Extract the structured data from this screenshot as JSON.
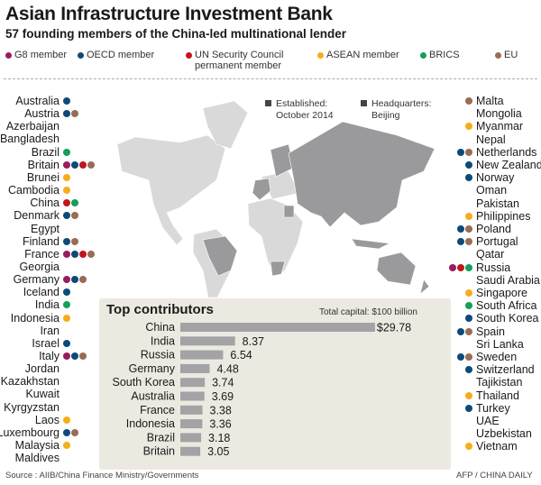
{
  "header": {
    "title": "Asian Infrastructure Investment Bank",
    "subtitle": "57 founding members of the China-led multinational lender"
  },
  "legend": [
    {
      "key": "g8",
      "label": "G8 member",
      "color": "#9b1c5e"
    },
    {
      "key": "oecd",
      "label": "OECD member",
      "color": "#0c4a7a"
    },
    {
      "key": "unsc",
      "label": "UN Security Council permanent member",
      "color": "#c0161b"
    },
    {
      "key": "asean",
      "label": "ASEAN member",
      "color": "#f5ad1a"
    },
    {
      "key": "brics",
      "label": "BRICS",
      "color": "#13a05a"
    },
    {
      "key": "eu",
      "label": "EU",
      "color": "#9a6b55"
    }
  ],
  "members_left": [
    {
      "name": "Australia",
      "tags": [
        "oecd"
      ]
    },
    {
      "name": "Austria",
      "tags": [
        "oecd",
        "eu"
      ]
    },
    {
      "name": "Azerbaijan",
      "tags": []
    },
    {
      "name": "Bangladesh",
      "tags": []
    },
    {
      "name": "Brazil",
      "tags": [
        "brics"
      ]
    },
    {
      "name": "Britain",
      "tags": [
        "g8",
        "oecd",
        "unsc",
        "eu"
      ]
    },
    {
      "name": "Brunei",
      "tags": [
        "asean"
      ]
    },
    {
      "name": "Cambodia",
      "tags": [
        "asean"
      ]
    },
    {
      "name": "China",
      "tags": [
        "unsc",
        "brics"
      ]
    },
    {
      "name": "Denmark",
      "tags": [
        "oecd",
        "eu"
      ]
    },
    {
      "name": "Egypt",
      "tags": []
    },
    {
      "name": "Finland",
      "tags": [
        "oecd",
        "eu"
      ]
    },
    {
      "name": "France",
      "tags": [
        "g8",
        "oecd",
        "unsc",
        "eu"
      ]
    },
    {
      "name": "Georgia",
      "tags": []
    },
    {
      "name": "Germany",
      "tags": [
        "g8",
        "oecd",
        "eu"
      ]
    },
    {
      "name": "Iceland",
      "tags": [
        "oecd"
      ]
    },
    {
      "name": "India",
      "tags": [
        "brics"
      ]
    },
    {
      "name": "Indonesia",
      "tags": [
        "asean"
      ]
    },
    {
      "name": "Iran",
      "tags": []
    },
    {
      "name": "Israel",
      "tags": [
        "oecd"
      ]
    },
    {
      "name": "Italy",
      "tags": [
        "g8",
        "oecd",
        "eu"
      ]
    },
    {
      "name": "Jordan",
      "tags": []
    },
    {
      "name": "Kazakhstan",
      "tags": []
    },
    {
      "name": "Kuwait",
      "tags": []
    },
    {
      "name": "Kyrgyzstan",
      "tags": []
    },
    {
      "name": "Laos",
      "tags": [
        "asean"
      ]
    },
    {
      "name": "Luxembourg",
      "tags": [
        "oecd",
        "eu"
      ]
    },
    {
      "name": "Malaysia",
      "tags": [
        "asean"
      ]
    },
    {
      "name": "Maldives",
      "tags": []
    }
  ],
  "members_right": [
    {
      "name": "Malta",
      "tags": [
        "eu"
      ]
    },
    {
      "name": "Mongolia",
      "tags": []
    },
    {
      "name": "Myanmar",
      "tags": [
        "asean"
      ]
    },
    {
      "name": "Nepal",
      "tags": []
    },
    {
      "name": "Netherlands",
      "tags": [
        "oecd",
        "eu"
      ]
    },
    {
      "name": "New Zealand",
      "tags": [
        "oecd"
      ]
    },
    {
      "name": "Norway",
      "tags": [
        "oecd"
      ]
    },
    {
      "name": "Oman",
      "tags": []
    },
    {
      "name": "Pakistan",
      "tags": []
    },
    {
      "name": "Philippines",
      "tags": [
        "asean"
      ]
    },
    {
      "name": "Poland",
      "tags": [
        "oecd",
        "eu"
      ]
    },
    {
      "name": "Portugal",
      "tags": [
        "oecd",
        "eu"
      ]
    },
    {
      "name": "Qatar",
      "tags": []
    },
    {
      "name": "Russia",
      "tags": [
        "g8",
        "unsc",
        "brics"
      ]
    },
    {
      "name": "Saudi Arabia",
      "tags": []
    },
    {
      "name": "Singapore",
      "tags": [
        "asean"
      ]
    },
    {
      "name": "South Africa",
      "tags": [
        "brics"
      ]
    },
    {
      "name": "South Korea",
      "tags": [
        "oecd"
      ]
    },
    {
      "name": "Spain",
      "tags": [
        "oecd",
        "eu"
      ]
    },
    {
      "name": "Sri Lanka",
      "tags": []
    },
    {
      "name": "Sweden",
      "tags": [
        "oecd",
        "eu"
      ]
    },
    {
      "name": "Switzerland",
      "tags": [
        "oecd"
      ]
    },
    {
      "name": "Tajikistan",
      "tags": []
    },
    {
      "name": "Thailand",
      "tags": [
        "asean"
      ]
    },
    {
      "name": "Turkey",
      "tags": [
        "oecd"
      ]
    },
    {
      "name": "UAE",
      "tags": []
    },
    {
      "name": "Uzbekistan",
      "tags": []
    },
    {
      "name": "Vietnam",
      "tags": [
        "asean"
      ]
    }
  ],
  "map": {
    "established_label": "Established:",
    "established_value": "October 2014",
    "hq_label": "Headquarters:",
    "hq_value": "Beijing",
    "member_color": "#9a9a9c",
    "nonmember_color": "#d9d9d9"
  },
  "chart_data": {
    "type": "bar",
    "orientation": "horizontal",
    "title": "Top contributors",
    "subtitle": "Total capital: $100 billion",
    "categories": [
      "China",
      "India",
      "Russia",
      "Germany",
      "South Korea",
      "Australia",
      "France",
      "Indonesia",
      "Brazil",
      "Britain"
    ],
    "values": [
      29.78,
      8.37,
      6.54,
      4.48,
      3.74,
      3.69,
      3.38,
      3.36,
      3.18,
      3.05
    ],
    "value_labels": [
      "$29.78",
      "8.37",
      "6.54",
      "4.48",
      "3.74",
      "3.69",
      "3.38",
      "3.36",
      "3.18",
      "3.05"
    ],
    "unit": "$ billion",
    "bar_color": "#a3a3a6",
    "grid": false
  },
  "footer": {
    "source": "Source : AIIB/China Finance Ministry/Governments",
    "credit": "AFP / CHINA DAILY"
  }
}
